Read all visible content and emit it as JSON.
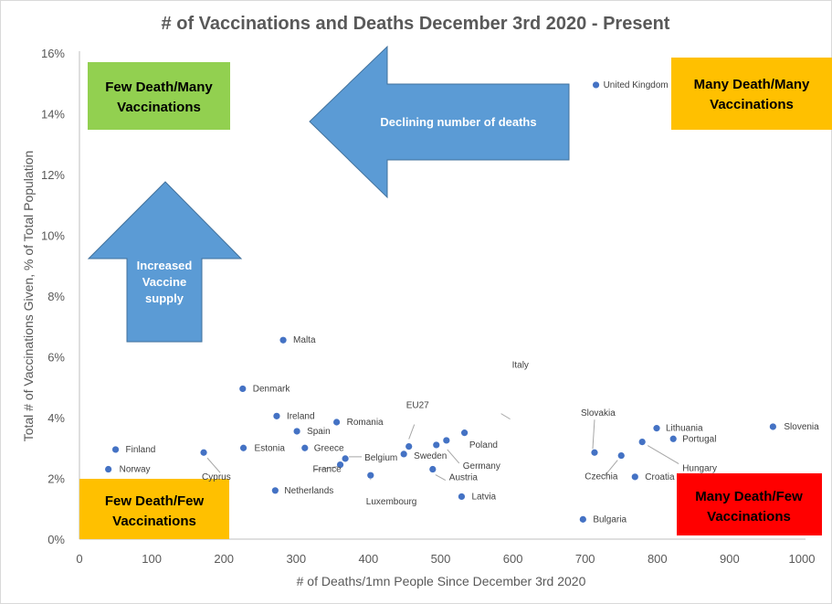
{
  "chart_data": {
    "type": "scatter",
    "title": "# of Vaccinations and Deaths December 3rd 2020 - Present",
    "xlabel": "# of Deaths/1mn People Since December 3rd 2020",
    "ylabel": "Total # of Vaccinations Given, % of Total Population",
    "xlim": [
      0,
      1000
    ],
    "ylim": [
      0,
      16
    ],
    "xticks": [
      0,
      100,
      200,
      300,
      400,
      500,
      600,
      700,
      800,
      900,
      1000
    ],
    "yticks": [
      0,
      2,
      4,
      6,
      8,
      10,
      12,
      14,
      16
    ],
    "ytick_suffix": "%",
    "grid": false,
    "marker_color": "#4472c4",
    "points": [
      {
        "name": "United Kingdom",
        "x": 715,
        "y": 14.95
      },
      {
        "name": "Malta",
        "x": 282,
        "y": 6.55
      },
      {
        "name": "Denmark",
        "x": 226,
        "y": 4.95
      },
      {
        "name": "Ireland",
        "x": 273,
        "y": 4.05
      },
      {
        "name": "Romania",
        "x": 356,
        "y": 3.85
      },
      {
        "name": "Spain",
        "x": 301,
        "y": 3.55
      },
      {
        "name": "Italy",
        "x": 533,
        "y": 3.5
      },
      {
        "name": "Slovenia",
        "x": 960,
        "y": 3.7
      },
      {
        "name": "Lithuania",
        "x": 799,
        "y": 3.65
      },
      {
        "name": "Portugal",
        "x": 822,
        "y": 3.3
      },
      {
        "name": "Hungary",
        "x": 779,
        "y": 3.2
      },
      {
        "name": "Poland",
        "x": 508,
        "y": 3.25
      },
      {
        "name": "EU27",
        "x": 456,
        "y": 3.05
      },
      {
        "name": "Germany",
        "x": 494,
        "y": 3.1
      },
      {
        "name": "Sweden",
        "x": 449,
        "y": 2.8
      },
      {
        "name": "Belgium",
        "x": 368,
        "y": 2.65
      },
      {
        "name": "France",
        "x": 361,
        "y": 2.45
      },
      {
        "name": "Estonia",
        "x": 227,
        "y": 3.0
      },
      {
        "name": "Greece",
        "x": 312,
        "y": 3.0
      },
      {
        "name": "Finland",
        "x": 50,
        "y": 2.95
      },
      {
        "name": "Cyprus",
        "x": 172,
        "y": 2.85
      },
      {
        "name": "Norway",
        "x": 40,
        "y": 2.3
      },
      {
        "name": "Slovakia",
        "x": 713,
        "y": 2.85
      },
      {
        "name": "Czechia",
        "x": 750,
        "y": 2.75
      },
      {
        "name": "Austria",
        "x": 489,
        "y": 2.3
      },
      {
        "name": "Croatia",
        "x": 769,
        "y": 2.05
      },
      {
        "name": "Luxembourg",
        "x": 403,
        "y": 2.1
      },
      {
        "name": "Netherlands",
        "x": 271,
        "y": 1.6
      },
      {
        "name": "Latvia",
        "x": 529,
        "y": 1.4
      },
      {
        "name": "Bulgaria",
        "x": 697,
        "y": 0.65
      }
    ]
  },
  "annotations": {
    "few_death_many": {
      "line1": "Few Death/Many",
      "line2": "Vaccinations",
      "color": "#92d050"
    },
    "many_death_many": {
      "line1": "Many  Death/Many",
      "line2": "Vaccinations",
      "color": "#ffc000"
    },
    "few_death_few": {
      "line1": "Few Death/Few",
      "line2": "Vaccinations",
      "color": "#ffc000"
    },
    "many_death_few": {
      "line1": "Many Death/Few",
      "line2": "Vaccinations",
      "color": "#ff0000"
    },
    "left_arrow": {
      "text": "Declining number of deaths",
      "color": "#5b9bd5"
    },
    "up_arrow": {
      "line1": "Increased",
      "line2": "Vaccine",
      "line3": "supply",
      "color": "#5b9bd5"
    }
  }
}
